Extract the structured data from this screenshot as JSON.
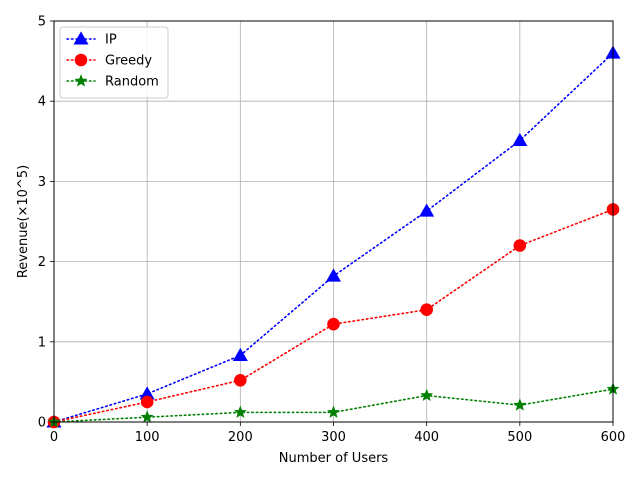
{
  "chart_data": {
    "type": "line",
    "title": "",
    "xlabel": "Number of Users",
    "ylabel": "Revenue(×10^5)",
    "xlim": [
      0,
      600
    ],
    "ylim": [
      0,
      5
    ],
    "x": [
      0,
      100,
      200,
      300,
      400,
      500,
      600
    ],
    "xticks": [
      "0",
      "100",
      "200",
      "300",
      "400",
      "500",
      "600"
    ],
    "yticks": [
      "0",
      "1",
      "2",
      "3",
      "4",
      "5"
    ],
    "grid": true,
    "legend_position": "top-left",
    "series": [
      {
        "name": " IP",
        "color": "#0000ff",
        "marker": "triangle",
        "linestyle": "dotted",
        "values": [
          0,
          0.35,
          0.83,
          1.82,
          2.63,
          3.51,
          4.6
        ]
      },
      {
        "name": "Greedy",
        "color": "#ff0000",
        "marker": "circle",
        "linestyle": "dotted",
        "values": [
          0,
          0.25,
          0.52,
          1.22,
          1.4,
          2.2,
          2.65
        ]
      },
      {
        "name": "Random",
        "color": "#008000",
        "marker": "star",
        "linestyle": "dotted",
        "values": [
          0,
          0.06,
          0.12,
          0.12,
          0.33,
          0.21,
          0.41
        ]
      }
    ]
  }
}
